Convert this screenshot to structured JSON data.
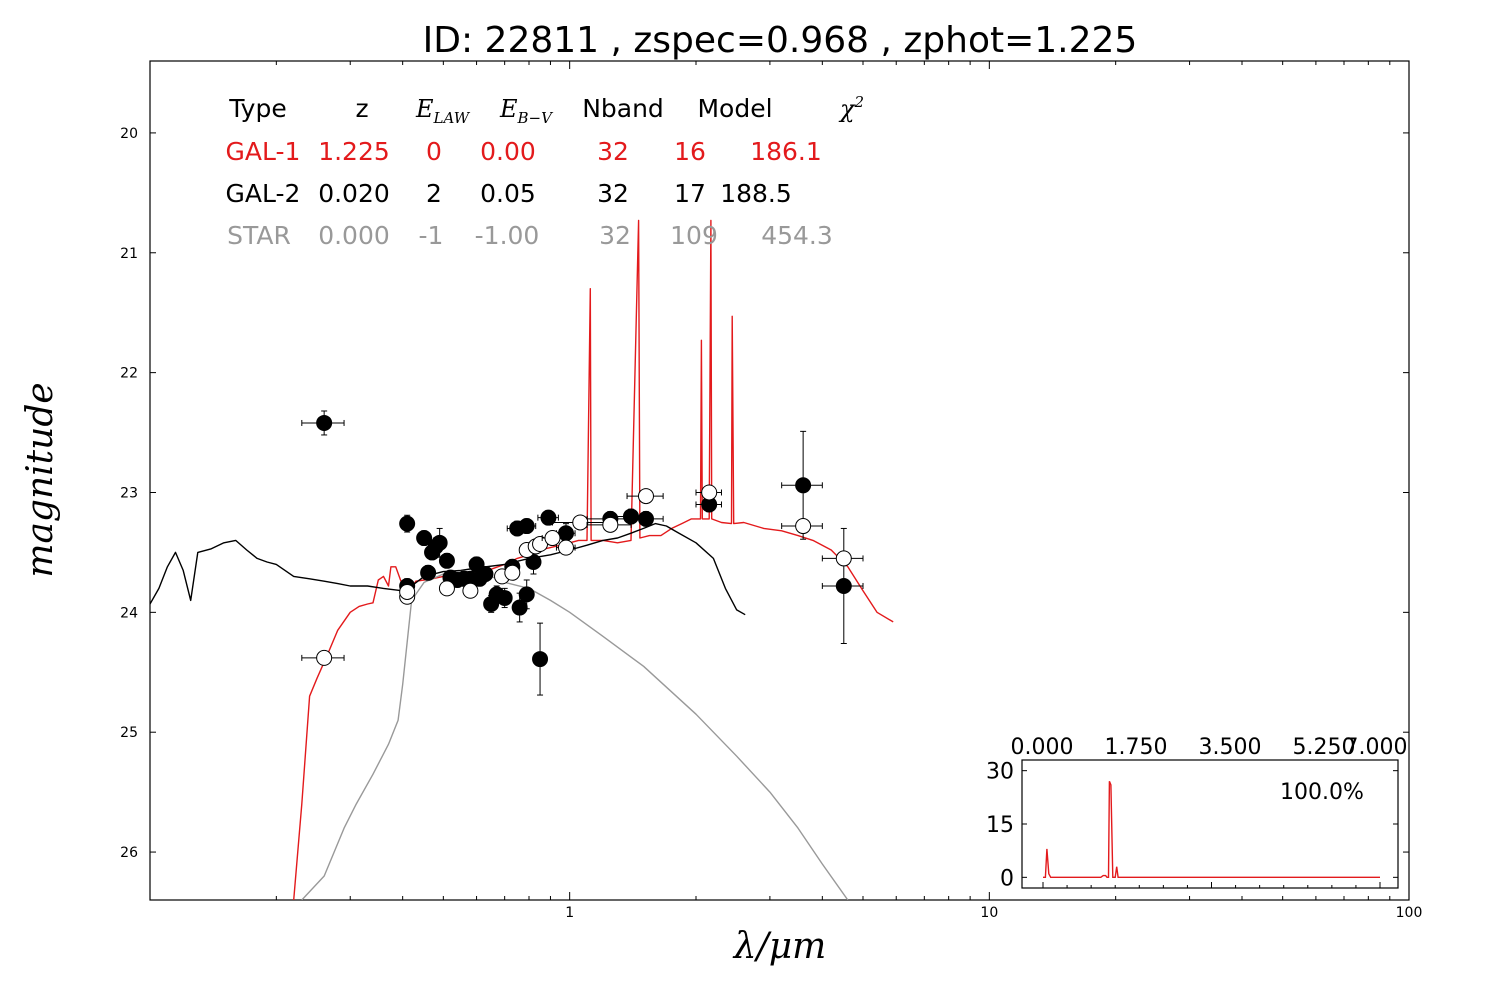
{
  "title": "ID:  22811 , zspec=0.968 , zphot=1.225",
  "colors": {
    "gal1": "#e31a1c",
    "gal2": "#000000",
    "star": "#999999",
    "inset_line": "#e31a1c"
  },
  "table": {
    "headers": [
      "Type",
      "z",
      "E_LAW",
      "E_B-V",
      "Nband",
      "Model",
      "χ²"
    ],
    "rows": [
      {
        "values": [
          "GAL-1",
          "1.225",
          "0",
          "0.00",
          "32",
          "16",
          "186.1"
        ],
        "color": "#e31a1c"
      },
      {
        "values": [
          "GAL-2",
          "0.020",
          "2",
          "0.05",
          "32",
          "17",
          "188.5"
        ],
        "color": "#000000"
      },
      {
        "values": [
          "STAR",
          "0.000",
          "-1",
          "-1.00",
          "32",
          "109",
          "454.3"
        ],
        "color": "#999999"
      }
    ]
  },
  "chart_data": [
    {
      "type": "scatter",
      "title": "ID:  22811 , zspec=0.968 , zphot=1.225",
      "xlabel": "λ/μm",
      "ylabel": "magnitude",
      "xscale": "log",
      "xlim": [
        0.1,
        100
      ],
      "ylim": [
        26.4,
        19.4
      ],
      "y_inverted": true,
      "x_ticks": [
        1,
        10,
        100
      ],
      "y_ticks": [
        20,
        21,
        22,
        23,
        24,
        25,
        26
      ],
      "series": [
        {
          "kind": "observed",
          "marker": "filled-circle",
          "points": [
            {
              "x": 0.26,
              "y": 22.42,
              "xerr": 0.03,
              "yerr": 0.1
            },
            {
              "x": 0.41,
              "y": 23.26,
              "xerr": 0.01,
              "yerr": 0.07
            },
            {
              "x": 0.41,
              "y": 23.78,
              "xerr": 0.01,
              "yerr": 0.06
            },
            {
              "x": 0.45,
              "y": 23.38,
              "xerr": 0.01,
              "yerr": 0.06
            },
            {
              "x": 0.46,
              "y": 23.67,
              "xerr": 0.01,
              "yerr": 0.06
            },
            {
              "x": 0.47,
              "y": 23.5,
              "xerr": 0.01,
              "yerr": 0.06
            },
            {
              "x": 0.48,
              "y": 23.45,
              "xerr": 0.01,
              "yerr": 0.07
            },
            {
              "x": 0.49,
              "y": 23.42,
              "xerr": 0.015,
              "yerr": 0.12
            },
            {
              "x": 0.51,
              "y": 23.57,
              "xerr": 0.015,
              "yerr": 0.06
            },
            {
              "x": 0.52,
              "y": 23.71,
              "xerr": 0.02,
              "yerr": 0.06
            },
            {
              "x": 0.54,
              "y": 23.73,
              "xerr": 0.015,
              "yerr": 0.06
            },
            {
              "x": 0.56,
              "y": 23.72,
              "xerr": 0.015,
              "yerr": 0.06
            },
            {
              "x": 0.58,
              "y": 23.72,
              "xerr": 0.015,
              "yerr": 0.06
            },
            {
              "x": 0.6,
              "y": 23.6,
              "xerr": 0.015,
              "yerr": 0.06
            },
            {
              "x": 0.61,
              "y": 23.72,
              "xerr": 0.015,
              "yerr": 0.06
            },
            {
              "x": 0.63,
              "y": 23.68,
              "xerr": 0.02,
              "yerr": 0.06
            },
            {
              "x": 0.65,
              "y": 23.93,
              "xerr": 0.02,
              "yerr": 0.07
            },
            {
              "x": 0.67,
              "y": 23.85,
              "xerr": 0.02,
              "yerr": 0.07
            },
            {
              "x": 0.7,
              "y": 23.88,
              "xerr": 0.02,
              "yerr": 0.08
            },
            {
              "x": 0.73,
              "y": 23.62,
              "xerr": 0.02,
              "yerr": 0.06
            },
            {
              "x": 0.75,
              "y": 23.3,
              "xerr": 0.04,
              "yerr": 0.06
            },
            {
              "x": 0.76,
              "y": 23.96,
              "xerr": 0.02,
              "yerr": 0.12
            },
            {
              "x": 0.79,
              "y": 23.28,
              "xerr": 0.04,
              "yerr": 0.06
            },
            {
              "x": 0.79,
              "y": 23.85,
              "xerr": 0.02,
              "yerr": 0.12
            },
            {
              "x": 0.82,
              "y": 23.58,
              "xerr": 0.02,
              "yerr": 0.1
            },
            {
              "x": 0.85,
              "y": 24.39,
              "xerr": 0.02,
              "yerr": 0.3
            },
            {
              "x": 0.89,
              "y": 23.21,
              "xerr": 0.05,
              "yerr": 0.06
            },
            {
              "x": 0.98,
              "y": 23.34,
              "xerr": 0.05,
              "yerr": 0.08
            },
            {
              "x": 1.25,
              "y": 23.22,
              "xerr": 0.15,
              "yerr": 0.06
            },
            {
              "x": 1.4,
              "y": 23.2,
              "xerr": 0.15,
              "yerr": 0.06
            },
            {
              "x": 1.52,
              "y": 23.22,
              "xerr": 0.15,
              "yerr": 0.06
            },
            {
              "x": 2.15,
              "y": 23.1,
              "xerr": 0.15,
              "yerr": 0.06
            },
            {
              "x": 3.6,
              "y": 22.94,
              "xerr": 0.4,
              "yerr": 0.45
            },
            {
              "x": 4.5,
              "y": 23.78,
              "xerr": 0.5,
              "yerr": 0.48
            }
          ]
        },
        {
          "kind": "model-magnitudes",
          "marker": "open-circle",
          "points": [
            {
              "x": 0.26,
              "y": 24.38,
              "xerr": 0.03
            },
            {
              "x": 0.41,
              "y": 23.87,
              "xerr": 0.01
            },
            {
              "x": 0.41,
              "y": 23.83,
              "xerr": 0.01
            },
            {
              "x": 0.51,
              "y": 23.8,
              "xerr": 0.015
            },
            {
              "x": 0.58,
              "y": 23.82,
              "xerr": 0.02
            },
            {
              "x": 0.69,
              "y": 23.7,
              "xerr": 0.02
            },
            {
              "x": 0.73,
              "y": 23.67,
              "xerr": 0.02
            },
            {
              "x": 0.79,
              "y": 23.48,
              "xerr": 0.03
            },
            {
              "x": 0.83,
              "y": 23.45,
              "xerr": 0.03
            },
            {
              "x": 0.85,
              "y": 23.43,
              "xerr": 0.02
            },
            {
              "x": 0.91,
              "y": 23.38,
              "xerr": 0.05
            },
            {
              "x": 0.98,
              "y": 23.46,
              "xerr": 0.05
            },
            {
              "x": 1.06,
              "y": 23.25,
              "xerr": 0.15
            },
            {
              "x": 1.25,
              "y": 23.27,
              "xerr": 0.15
            },
            {
              "x": 1.52,
              "y": 23.03,
              "xerr": 0.15
            },
            {
              "x": 2.15,
              "y": 23.0,
              "xerr": 0.15
            },
            {
              "x": 3.6,
              "y": 23.28,
              "xerr": 0.4
            },
            {
              "x": 4.5,
              "y": 23.55,
              "xerr": 0.5
            }
          ]
        },
        {
          "name": "GAL-1",
          "kind": "sed-line",
          "color": "#e31a1c",
          "points": [
            [
              0.22,
              26.4
            ],
            [
              0.23,
              25.6
            ],
            [
              0.24,
              24.7
            ],
            [
              0.25,
              24.55
            ],
            [
              0.265,
              24.35
            ],
            [
              0.28,
              24.15
            ],
            [
              0.3,
              24.0
            ],
            [
              0.315,
              23.95
            ],
            [
              0.33,
              23.93
            ],
            [
              0.34,
              23.92
            ],
            [
              0.35,
              23.73
            ],
            [
              0.36,
              23.7
            ],
            [
              0.37,
              23.78
            ],
            [
              0.375,
              23.62
            ],
            [
              0.385,
              23.62
            ],
            [
              0.4,
              23.78
            ],
            [
              0.41,
              23.8
            ],
            [
              0.42,
              23.8
            ],
            [
              0.43,
              23.74
            ],
            [
              0.45,
              23.73
            ],
            [
              0.47,
              23.72
            ],
            [
              0.5,
              23.7
            ],
            [
              0.55,
              23.68
            ],
            [
              0.6,
              23.66
            ],
            [
              0.65,
              23.64
            ],
            [
              0.7,
              23.6
            ],
            [
              0.75,
              23.55
            ],
            [
              0.8,
              23.52
            ],
            [
              0.85,
              23.48
            ],
            [
              0.9,
              23.46
            ],
            [
              0.95,
              23.44
            ],
            [
              1.0,
              23.42
            ],
            [
              1.05,
              23.4
            ],
            [
              1.1,
              23.4
            ],
            [
              1.12,
              21.3
            ],
            [
              1.125,
              23.4
            ],
            [
              1.2,
              23.4
            ],
            [
              1.3,
              23.42
            ],
            [
              1.4,
              23.4
            ],
            [
              1.46,
              20.73
            ],
            [
              1.47,
              23.38
            ],
            [
              1.55,
              23.36
            ],
            [
              1.65,
              23.36
            ],
            [
              1.75,
              23.3
            ],
            [
              1.85,
              23.26
            ],
            [
              1.95,
              23.22
            ],
            [
              2.05,
              23.22
            ],
            [
              2.06,
              21.73
            ],
            [
              2.07,
              23.22
            ],
            [
              2.15,
              23.22
            ],
            [
              2.17,
              20.73
            ],
            [
              2.18,
              23.22
            ],
            [
              2.3,
              23.25
            ],
            [
              2.43,
              23.26
            ],
            [
              2.44,
              21.53
            ],
            [
              2.46,
              23.26
            ],
            [
              2.6,
              23.25
            ],
            [
              2.9,
              23.3
            ],
            [
              3.2,
              23.32
            ],
            [
              3.5,
              23.36
            ],
            [
              3.8,
              23.4
            ],
            [
              4.2,
              23.48
            ],
            [
              4.6,
              23.62
            ],
            [
              5.0,
              23.82
            ],
            [
              5.4,
              24.0
            ],
            [
              5.9,
              24.08
            ]
          ]
        },
        {
          "name": "GAL-2",
          "kind": "sed-line",
          "color": "#000000",
          "points": [
            [
              0.1,
              23.93
            ],
            [
              0.105,
              23.8
            ],
            [
              0.11,
              23.62
            ],
            [
              0.115,
              23.5
            ],
            [
              0.12,
              23.65
            ],
            [
              0.125,
              23.9
            ],
            [
              0.13,
              23.5
            ],
            [
              0.14,
              23.47
            ],
            [
              0.15,
              23.42
            ],
            [
              0.16,
              23.4
            ],
            [
              0.17,
              23.48
            ],
            [
              0.18,
              23.55
            ],
            [
              0.19,
              23.58
            ],
            [
              0.2,
              23.6
            ],
            [
              0.22,
              23.7
            ],
            [
              0.24,
              23.72
            ],
            [
              0.26,
              23.74
            ],
            [
              0.28,
              23.76
            ],
            [
              0.3,
              23.78
            ],
            [
              0.33,
              23.78
            ],
            [
              0.36,
              23.8
            ],
            [
              0.4,
              23.82
            ],
            [
              0.42,
              23.78
            ],
            [
              0.45,
              23.7
            ],
            [
              0.5,
              23.66
            ],
            [
              0.55,
              23.65
            ],
            [
              0.6,
              23.63
            ],
            [
              0.7,
              23.6
            ],
            [
              0.8,
              23.55
            ],
            [
              0.9,
              23.52
            ],
            [
              1.0,
              23.48
            ],
            [
              1.1,
              23.44
            ],
            [
              1.2,
              23.4
            ],
            [
              1.3,
              23.38
            ],
            [
              1.4,
              23.34
            ],
            [
              1.5,
              23.3
            ],
            [
              1.6,
              23.26
            ],
            [
              1.7,
              23.28
            ],
            [
              1.8,
              23.33
            ],
            [
              2.0,
              23.42
            ],
            [
              2.2,
              23.55
            ],
            [
              2.35,
              23.8
            ],
            [
              2.5,
              23.98
            ],
            [
              2.62,
              24.02
            ]
          ]
        },
        {
          "name": "STAR",
          "kind": "sed-line",
          "color": "#999999",
          "points": [
            [
              0.23,
              26.4
            ],
            [
              0.26,
              26.2
            ],
            [
              0.29,
              25.8
            ],
            [
              0.31,
              25.6
            ],
            [
              0.34,
              25.35
            ],
            [
              0.37,
              25.1
            ],
            [
              0.39,
              24.9
            ],
            [
              0.4,
              24.6
            ],
            [
              0.42,
              23.9
            ],
            [
              0.45,
              23.75
            ],
            [
              0.5,
              23.68
            ],
            [
              0.55,
              23.66
            ],
            [
              0.6,
              23.66
            ],
            [
              0.65,
              23.7
            ],
            [
              0.7,
              23.75
            ],
            [
              0.8,
              23.8
            ],
            [
              0.9,
              23.9
            ],
            [
              1.0,
              24.0
            ],
            [
              1.2,
              24.2
            ],
            [
              1.5,
              24.45
            ],
            [
              2.0,
              24.85
            ],
            [
              2.5,
              25.2
            ],
            [
              3.0,
              25.5
            ],
            [
              3.5,
              25.8
            ],
            [
              4.0,
              26.1
            ],
            [
              4.6,
              26.4
            ]
          ]
        }
      ]
    },
    {
      "type": "line",
      "title": "",
      "xlabel": "",
      "ylabel": "",
      "xlim": [
        0,
        7
      ],
      "ylim": [
        -3,
        33
      ],
      "x_ticks": [
        "0.000",
        "1.750",
        "3.500",
        "5.250",
        "7.000"
      ],
      "y_ticks": [
        "0",
        "15",
        "30"
      ],
      "annotation": "100.0%",
      "series": [
        {
          "color": "#e31a1c",
          "x": [
            0.0,
            0.05,
            0.08,
            0.12,
            0.16,
            1.2,
            1.25,
            1.3,
            1.33,
            1.36,
            1.38,
            1.41,
            1.45,
            1.5,
            1.53,
            1.56,
            1.6,
            2.0,
            4.0,
            7.0
          ],
          "y": [
            0,
            0,
            8,
            1,
            0,
            0,
            0.5,
            0.5,
            0,
            0,
            27,
            26,
            0,
            0,
            3,
            0,
            0,
            0,
            0,
            0
          ]
        }
      ]
    }
  ]
}
